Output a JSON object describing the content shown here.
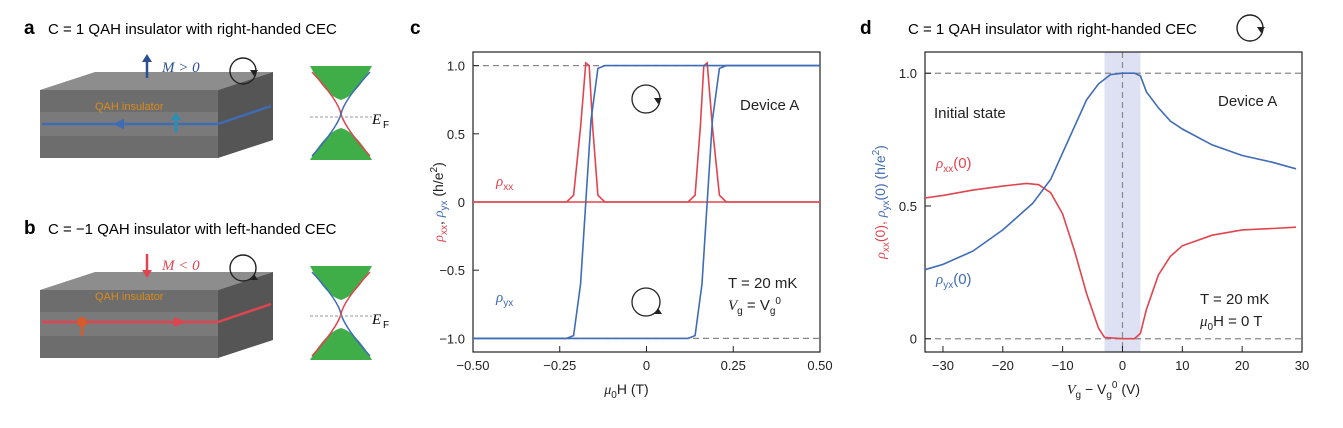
{
  "panels": {
    "a": {
      "letter": "a",
      "title": "C = 1 QAH insulator with right-handed CEC",
      "magnetization": "M > 0",
      "material": "QAH insulator",
      "fermi_level": "E",
      "fermi_sub": "F"
    },
    "b": {
      "letter": "b",
      "title": "C = −1 QAH insulator with left-handed CEC",
      "magnetization": "M < 0",
      "material": "QAH insulator",
      "fermi_level": "E",
      "fermi_sub": "F"
    },
    "c": {
      "letter": "c"
    },
    "d": {
      "letter": "d",
      "title": "C = 1 QAH insulator with right-handed CEC"
    }
  },
  "colors": {
    "rho_xx": "#e0454f",
    "rho_yx": "#3f6cb5",
    "arrow_up": "#2b4f8f",
    "arrow_down": "#e0454f",
    "green": "#3fae49",
    "slab_top": "#8d8d8d",
    "slab_front": "#6d6d6d",
    "slab_side": "#555555",
    "shade": "#dde1f3",
    "dash": "#888888"
  },
  "chart_data": [
    {
      "panel": "c",
      "type": "line",
      "xlabel_main": "μ",
      "xlabel_sub": "0",
      "xlabel_rest": "H (T)",
      "ylabel_parts": [
        "ρ",
        "xx",
        ", ",
        "ρ",
        "yx",
        " (h/e",
        "2",
        ")"
      ],
      "xlim": [
        -0.5,
        0.5
      ],
      "ylim": [
        -1.0,
        1.0
      ],
      "x_ticks": [
        "−0.50",
        "−0.25",
        "0",
        "0.25",
        "0.50"
      ],
      "x_tick_values": [
        -0.5,
        -0.25,
        0,
        0.25,
        0.5
      ],
      "y_ticks": [
        "1.0",
        "0.5",
        "0",
        "−0.5",
        "−1.0"
      ],
      "y_tick_values": [
        1.0,
        0.5,
        0,
        -0.5,
        -1.0
      ],
      "dashed_lines": [
        1.0,
        -1.0
      ],
      "annotations": {
        "device": "Device A",
        "temperature": "T = 20 mK",
        "gate": "V",
        "gate_sub": "g",
        "gate_eq": " = V",
        "gate_sub2": "g",
        "gate_sup": "0"
      },
      "series": [
        {
          "name": "ρxx",
          "label_main": "ρ",
          "label_sub": "xx",
          "sweep_down": [
            [
              -0.5,
              0
            ],
            [
              -0.23,
              0
            ],
            [
              -0.21,
              0.05
            ],
            [
              -0.19,
              0.55
            ],
            [
              -0.175,
              1.02
            ],
            [
              -0.165,
              1.0
            ],
            [
              -0.155,
              0.55
            ],
            [
              -0.14,
              0.05
            ],
            [
              -0.12,
              0
            ],
            [
              0.5,
              0
            ]
          ],
          "sweep_up": [
            [
              -0.5,
              0
            ],
            [
              0.12,
              0
            ],
            [
              0.14,
              0.05
            ],
            [
              0.155,
              0.55
            ],
            [
              0.165,
              1.0
            ],
            [
              0.175,
              1.02
            ],
            [
              0.19,
              0.55
            ],
            [
              0.21,
              0.05
            ],
            [
              0.23,
              0
            ],
            [
              0.5,
              0
            ]
          ]
        },
        {
          "name": "ρyx",
          "label_main": "ρ",
          "label_sub": "yx",
          "sweep_down": [
            [
              0.5,
              1.0
            ],
            [
              -0.12,
              1.0
            ],
            [
              -0.14,
              0.98
            ],
            [
              -0.16,
              0.6
            ],
            [
              -0.175,
              0.0
            ],
            [
              -0.19,
              -0.6
            ],
            [
              -0.21,
              -0.98
            ],
            [
              -0.23,
              -1.0
            ],
            [
              -0.5,
              -1.0
            ]
          ],
          "sweep_up": [
            [
              -0.5,
              -1.0
            ],
            [
              0.12,
              -1.0
            ],
            [
              0.14,
              -0.98
            ],
            [
              0.16,
              -0.6
            ],
            [
              0.175,
              0.0
            ],
            [
              0.19,
              0.6
            ],
            [
              0.21,
              0.98
            ],
            [
              0.23,
              1.0
            ],
            [
              0.5,
              1.0
            ]
          ]
        }
      ]
    },
    {
      "panel": "d",
      "type": "line",
      "xlabel": "V",
      "xlabel_sub1": "g",
      "xlabel_mid": " − V",
      "xlabel_sub2": "g",
      "xlabel_sup": "0",
      "xlabel_unit": " (V)",
      "ylabel_parts": [
        "ρ",
        "xx",
        "(0), ",
        "ρ",
        "yx",
        "(0) (h/e",
        "2",
        ")"
      ],
      "xlim": [
        -33,
        30
      ],
      "ylim": [
        0,
        1.0
      ],
      "x_ticks": [
        "−30",
        "−20",
        "−10",
        "0",
        "10",
        "20",
        "30"
      ],
      "x_tick_values": [
        -30,
        -20,
        -10,
        0,
        10,
        20,
        30
      ],
      "y_ticks": [
        "1.0",
        "0.5",
        "0"
      ],
      "y_tick_values": [
        1.0,
        0.5,
        0
      ],
      "dashed_lines": [
        1.0,
        0
      ],
      "shaded_range": [
        -3,
        3
      ],
      "annotations": {
        "initial": "Initial state",
        "device": "Device A",
        "temperature": "T = 20 mK",
        "field": "μ",
        "field_sub": "0",
        "field_rest": "H = 0 T"
      },
      "series": [
        {
          "name": "ρxx(0)",
          "label_main": "ρ",
          "label_sub": "xx",
          "label_rest": "(0)",
          "points": [
            [
              -33,
              0.53
            ],
            [
              -30,
              0.54
            ],
            [
              -25,
              0.56
            ],
            [
              -20,
              0.575
            ],
            [
              -16,
              0.585
            ],
            [
              -14,
              0.58
            ],
            [
              -12,
              0.55
            ],
            [
              -10,
              0.47
            ],
            [
              -8,
              0.33
            ],
            [
              -6,
              0.17
            ],
            [
              -4,
              0.04
            ],
            [
              -3,
              0.005
            ],
            [
              0,
              0.0
            ],
            [
              2,
              0.0
            ],
            [
              3,
              0.02
            ],
            [
              4,
              0.11
            ],
            [
              6,
              0.24
            ],
            [
              8,
              0.31
            ],
            [
              10,
              0.35
            ],
            [
              15,
              0.39
            ],
            [
              20,
              0.41
            ],
            [
              25,
              0.415
            ],
            [
              29,
              0.42
            ]
          ]
        },
        {
          "name": "ρyx(0)",
          "label_main": "ρ",
          "label_sub": "yx",
          "label_rest": "(0)",
          "points": [
            [
              -33,
              0.26
            ],
            [
              -30,
              0.28
            ],
            [
              -25,
              0.33
            ],
            [
              -20,
              0.41
            ],
            [
              -15,
              0.51
            ],
            [
              -12,
              0.6
            ],
            [
              -10,
              0.7
            ],
            [
              -8,
              0.8
            ],
            [
              -6,
              0.9
            ],
            [
              -4,
              0.96
            ],
            [
              -2,
              0.995
            ],
            [
              0,
              1.0
            ],
            [
              2,
              1.0
            ],
            [
              3,
              0.99
            ],
            [
              4,
              0.93
            ],
            [
              6,
              0.87
            ],
            [
              8,
              0.82
            ],
            [
              10,
              0.79
            ],
            [
              15,
              0.73
            ],
            [
              20,
              0.69
            ],
            [
              25,
              0.665
            ],
            [
              29,
              0.64
            ]
          ]
        }
      ]
    }
  ]
}
